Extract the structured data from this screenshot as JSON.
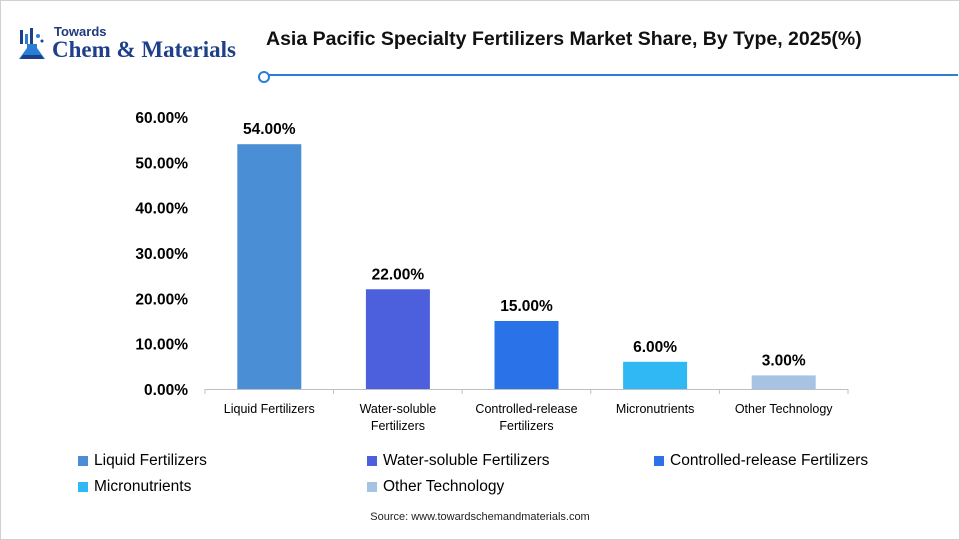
{
  "logo": {
    "line1": "Towards",
    "line2": "Chem & Materials"
  },
  "title": "Asia Pacific Specialty Fertilizers Market Share, By Type, 2025(%)",
  "source": "Source: www.towardschemandmaterials.com",
  "chart_data": {
    "type": "bar",
    "categories": [
      "Liquid Fertilizers",
      "Water-soluble Fertilizers",
      "Controlled-release Fertilizers",
      "Micronutrients",
      "Other Technology"
    ],
    "category_label_lines": [
      [
        "Liquid Fertilizers"
      ],
      [
        "Water-soluble",
        "Fertilizers"
      ],
      [
        "Controlled-release",
        "Fertilizers"
      ],
      [
        "Micronutrients"
      ],
      [
        "Other Technology"
      ]
    ],
    "values": [
      54.0,
      22.0,
      15.0,
      6.0,
      3.0
    ],
    "data_labels": [
      "54.00%",
      "22.00%",
      "15.00%",
      "6.00%",
      "3.00%"
    ],
    "colors": [
      "#4a8fd6",
      "#4c5fdc",
      "#2a72e8",
      "#2fb8f3",
      "#a6c3e4"
    ],
    "ylim": [
      0,
      60
    ],
    "yticks": [
      0,
      10,
      20,
      30,
      40,
      50,
      60
    ],
    "ytick_labels": [
      "0.00%",
      "10.00%",
      "20.00%",
      "30.00%",
      "40.00%",
      "50.00%",
      "60.00%"
    ],
    "xlabel": "",
    "ylabel": "",
    "grid": false,
    "legend_position": "bottom"
  }
}
